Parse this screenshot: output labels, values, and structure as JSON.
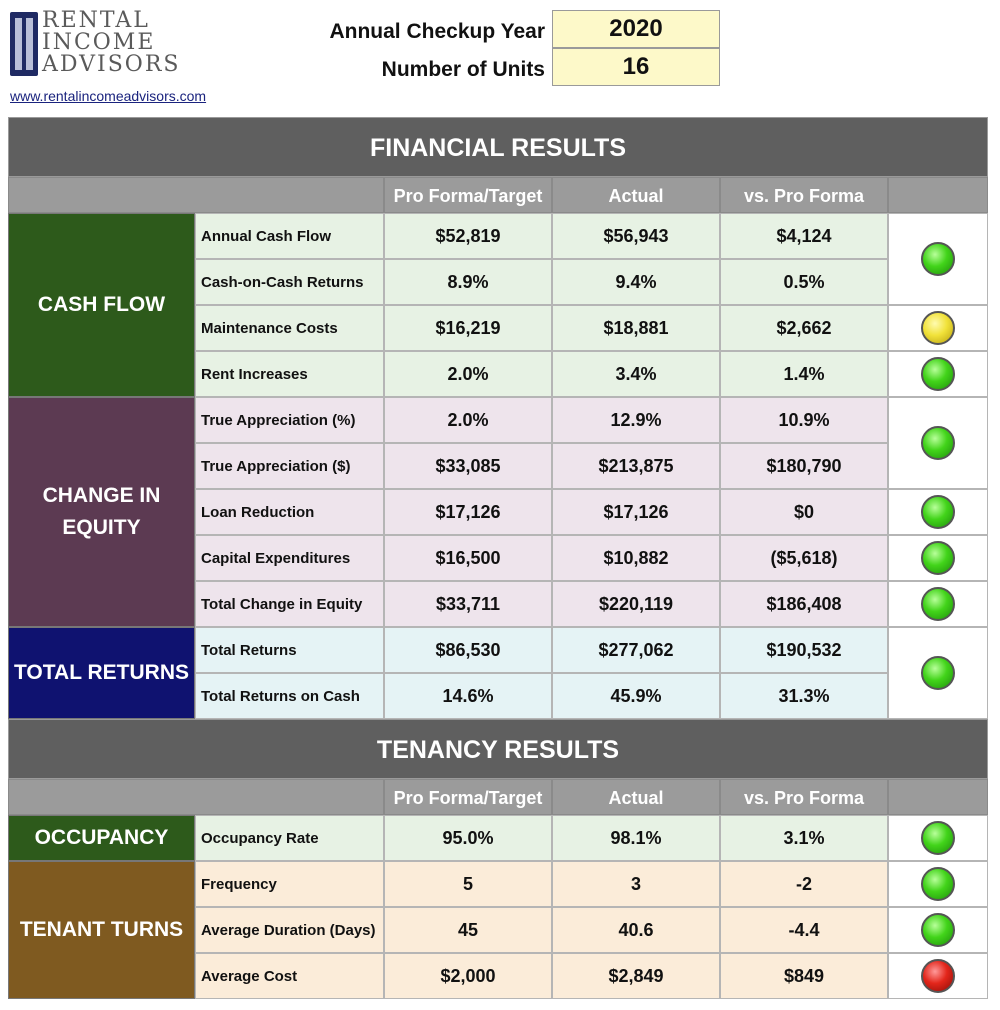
{
  "logo": {
    "line1": "RENTAL",
    "line2": "INCOME",
    "line3": "ADVISORS"
  },
  "site_link": "www.rentalincomeadvisors.com",
  "header": {
    "year_label": "Annual Checkup Year",
    "year_value": "2020",
    "units_label": "Number of Units",
    "units_value": "16"
  },
  "columns": {
    "target": "Pro Forma/Target",
    "actual": "Actual",
    "variance": "vs. Pro Forma"
  },
  "financial": {
    "title": "FINANCIAL RESULTS",
    "cash_flow": {
      "label": "CASH FLOW",
      "color": "#2d5a1b",
      "rows": [
        {
          "metric": "Annual Cash Flow",
          "target": "$52,819",
          "actual": "$56,943",
          "variance": "$4,124"
        },
        {
          "metric": "Cash-on-Cash Returns",
          "target": "8.9%",
          "actual": "9.4%",
          "variance": "0.5%"
        },
        {
          "metric": "Maintenance Costs",
          "target": "$16,219",
          "actual": "$18,881",
          "variance": "$2,662"
        },
        {
          "metric": "Rent Increases",
          "target": "2.0%",
          "actual": "3.4%",
          "variance": "1.4%"
        }
      ],
      "lights": [
        "green",
        "yellow",
        "green"
      ]
    },
    "equity": {
      "label_line1": "CHANGE IN",
      "label_line2": "EQUITY",
      "color": "#5c3a52",
      "rows": [
        {
          "metric": "True Appreciation (%)",
          "target": "2.0%",
          "actual": "12.9%",
          "variance": "10.9%"
        },
        {
          "metric": "True Appreciation ($)",
          "target": "$33,085",
          "actual": "$213,875",
          "variance": "$180,790"
        },
        {
          "metric": "Loan Reduction",
          "target": "$17,126",
          "actual": "$17,126",
          "variance": "$0"
        },
        {
          "metric": "Capital Expenditures",
          "target": "$16,500",
          "actual": "$10,882",
          "variance": "($5,618)"
        },
        {
          "metric": "Total Change in Equity",
          "target": "$33,711",
          "actual": "$220,119",
          "variance": "$186,408"
        }
      ],
      "lights": [
        "green",
        "green",
        "green",
        "green"
      ]
    },
    "total_returns": {
      "label": "TOTAL RETURNS",
      "color": "#0f1270",
      "rows": [
        {
          "metric": "Total Returns",
          "target": "$86,530",
          "actual": "$277,062",
          "variance": "$190,532"
        },
        {
          "metric": "Total Returns on Cash",
          "target": "14.6%",
          "actual": "45.9%",
          "variance": "31.3%"
        }
      ],
      "lights": [
        "green"
      ]
    }
  },
  "tenancy": {
    "title": "TENANCY RESULTS",
    "occupancy": {
      "label": "OCCUPANCY",
      "color": "#2d5a1b",
      "rows": [
        {
          "metric": "Occupancy Rate",
          "target": "95.0%",
          "actual": "98.1%",
          "variance": "3.1%"
        }
      ],
      "lights": [
        "green"
      ]
    },
    "turns": {
      "label": "TENANT TURNS",
      "color": "#7f5a20",
      "rows": [
        {
          "metric": "Frequency",
          "target": "5",
          "actual": "3",
          "variance": "-2"
        },
        {
          "metric": "Average Duration (Days)",
          "target": "45",
          "actual": "40.6",
          "variance": "-4.4"
        },
        {
          "metric": "Average Cost",
          "target": "$2,000",
          "actual": "$2,849",
          "variance": "$849"
        }
      ],
      "lights": [
        "green",
        "green",
        "red"
      ]
    }
  },
  "colors": {
    "cash_flow_row": "#e7f2e4",
    "equity_row": "#eee4ec",
    "returns_row": "#e5f3f5",
    "occupancy_row": "#e7f2e4",
    "turns_row": "#fbecd9"
  }
}
